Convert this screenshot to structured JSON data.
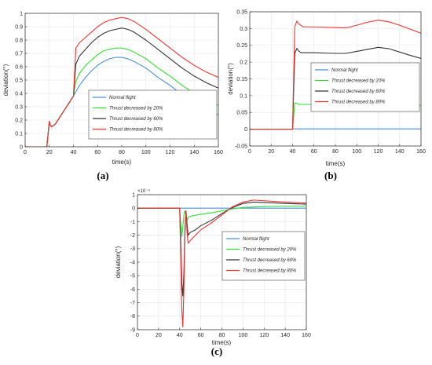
{
  "chart_data": [
    {
      "id": "a",
      "type": "line",
      "caption": "(a)",
      "xlabel": "time(s)",
      "ylabel": "deviation(°)",
      "xlim": [
        0,
        160
      ],
      "ylim": [
        0,
        1
      ],
      "xticks": [
        0,
        20,
        40,
        60,
        80,
        100,
        120,
        140,
        160
      ],
      "yticks": [
        0,
        0.1,
        0.2,
        0.3,
        0.4,
        0.5,
        0.6,
        0.7,
        0.8,
        0.9,
        1
      ],
      "ytick_labels": [
        "0",
        "0.1",
        "0.2",
        "0.3",
        "0.4",
        "0.5",
        "0.6",
        "0.7",
        "0.8",
        "0.9",
        "1"
      ],
      "grid": true,
      "legend_position": "bottom-right",
      "series": [
        {
          "name": "Normal flight",
          "color": "#4a90d9",
          "points": [
            [
              0,
              0
            ],
            [
              18,
              0
            ],
            [
              20,
              0.19
            ],
            [
              21,
              0.16
            ],
            [
              22,
              0.15
            ],
            [
              25,
              0.17
            ],
            [
              30,
              0.24
            ],
            [
              35,
              0.31
            ],
            [
              40,
              0.38
            ],
            [
              45,
              0.46
            ],
            [
              50,
              0.52
            ],
            [
              55,
              0.57
            ],
            [
              60,
              0.61
            ],
            [
              65,
              0.64
            ],
            [
              70,
              0.66
            ],
            [
              75,
              0.67
            ],
            [
              80,
              0.67
            ],
            [
              85,
              0.66
            ],
            [
              90,
              0.64
            ],
            [
              100,
              0.59
            ],
            [
              110,
              0.52
            ],
            [
              120,
              0.46
            ],
            [
              130,
              0.39
            ],
            [
              140,
              0.33
            ],
            [
              150,
              0.28
            ],
            [
              160,
              0.24
            ]
          ]
        },
        {
          "name": "Thrust decreased by 20%",
          "color": "#33dd33",
          "points": [
            [
              0,
              0
            ],
            [
              18,
              0
            ],
            [
              20,
              0.19
            ],
            [
              21,
              0.16
            ],
            [
              22,
              0.15
            ],
            [
              25,
              0.17
            ],
            [
              30,
              0.24
            ],
            [
              35,
              0.31
            ],
            [
              40,
              0.38
            ],
            [
              42,
              0.49
            ],
            [
              45,
              0.55
            ],
            [
              50,
              0.61
            ],
            [
              55,
              0.65
            ],
            [
              60,
              0.69
            ],
            [
              65,
              0.72
            ],
            [
              70,
              0.73
            ],
            [
              75,
              0.74
            ],
            [
              80,
              0.74
            ],
            [
              85,
              0.73
            ],
            [
              90,
              0.71
            ],
            [
              100,
              0.66
            ],
            [
              110,
              0.59
            ],
            [
              120,
              0.53
            ],
            [
              130,
              0.46
            ],
            [
              140,
              0.4
            ],
            [
              150,
              0.35
            ],
            [
              160,
              0.31
            ]
          ]
        },
        {
          "name": "Thrust decreased by 60%",
          "color": "#333333",
          "points": [
            [
              0,
              0
            ],
            [
              18,
              0
            ],
            [
              20,
              0.19
            ],
            [
              21,
              0.16
            ],
            [
              22,
              0.15
            ],
            [
              25,
              0.17
            ],
            [
              30,
              0.24
            ],
            [
              35,
              0.31
            ],
            [
              40,
              0.38
            ],
            [
              42,
              0.62
            ],
            [
              45,
              0.68
            ],
            [
              50,
              0.73
            ],
            [
              55,
              0.78
            ],
            [
              60,
              0.82
            ],
            [
              65,
              0.85
            ],
            [
              70,
              0.87
            ],
            [
              75,
              0.88
            ],
            [
              80,
              0.89
            ],
            [
              85,
              0.88
            ],
            [
              90,
              0.86
            ],
            [
              100,
              0.8
            ],
            [
              110,
              0.73
            ],
            [
              120,
              0.66
            ],
            [
              130,
              0.59
            ],
            [
              140,
              0.53
            ],
            [
              150,
              0.48
            ],
            [
              160,
              0.44
            ]
          ]
        },
        {
          "name": "Thrust decreased by 80%",
          "color": "#ee3333",
          "points": [
            [
              0,
              0
            ],
            [
              18,
              0
            ],
            [
              20,
              0.19
            ],
            [
              21,
              0.16
            ],
            [
              22,
              0.15
            ],
            [
              25,
              0.17
            ],
            [
              30,
              0.24
            ],
            [
              35,
              0.31
            ],
            [
              40,
              0.38
            ],
            [
              42,
              0.74
            ],
            [
              45,
              0.78
            ],
            [
              50,
              0.82
            ],
            [
              55,
              0.86
            ],
            [
              60,
              0.9
            ],
            [
              65,
              0.93
            ],
            [
              70,
              0.95
            ],
            [
              75,
              0.96
            ],
            [
              80,
              0.97
            ],
            [
              85,
              0.96
            ],
            [
              90,
              0.94
            ],
            [
              100,
              0.88
            ],
            [
              110,
              0.81
            ],
            [
              120,
              0.74
            ],
            [
              130,
              0.67
            ],
            [
              140,
              0.61
            ],
            [
              150,
              0.56
            ],
            [
              160,
              0.52
            ]
          ]
        }
      ]
    },
    {
      "id": "b",
      "type": "line",
      "caption": "(b)",
      "xlabel": "time(s)",
      "ylabel": "deviation(°)",
      "xlim": [
        0,
        160
      ],
      "ylim": [
        -0.05,
        0.35
      ],
      "xticks": [
        0,
        20,
        40,
        60,
        80,
        100,
        120,
        140,
        160
      ],
      "yticks": [
        -0.05,
        0,
        0.05,
        0.1,
        0.15,
        0.2,
        0.25,
        0.3,
        0.35
      ],
      "ytick_labels": [
        "-0.05",
        "0",
        "0.05",
        "0.1",
        "0.15",
        "0.2",
        "0.25",
        "0.3",
        "0.35"
      ],
      "grid": true,
      "legend_position": "center-right",
      "series": [
        {
          "name": "Normal flight",
          "color": "#4a90d9",
          "points": [
            [
              0,
              0
            ],
            [
              40,
              0
            ],
            [
              41,
              0.001
            ],
            [
              60,
              0.001
            ],
            [
              100,
              0.001
            ],
            [
              160,
              0.001
            ]
          ]
        },
        {
          "name": "Thrust decreased by 20%",
          "color": "#33dd33",
          "points": [
            [
              0,
              0
            ],
            [
              40,
              0
            ],
            [
              42,
              0.078
            ],
            [
              44,
              0.077
            ],
            [
              46,
              0.074
            ],
            [
              60,
              0.074
            ],
            [
              80,
              0.074
            ],
            [
              100,
              0.077
            ],
            [
              120,
              0.079
            ],
            [
              140,
              0.076
            ],
            [
              160,
              0.071
            ]
          ]
        },
        {
          "name": "Thrust decreased by 60%",
          "color": "#333333",
          "points": [
            [
              0,
              0
            ],
            [
              40,
              0
            ],
            [
              42,
              0.225
            ],
            [
              44,
              0.241
            ],
            [
              46,
              0.232
            ],
            [
              48,
              0.228
            ],
            [
              60,
              0.228
            ],
            [
              80,
              0.226
            ],
            [
              90,
              0.226
            ],
            [
              100,
              0.232
            ],
            [
              120,
              0.244
            ],
            [
              130,
              0.24
            ],
            [
              140,
              0.23
            ],
            [
              150,
              0.22
            ],
            [
              160,
              0.211
            ]
          ]
        },
        {
          "name": "Thrust decreased by 80%",
          "color": "#ee3333",
          "points": [
            [
              0,
              0
            ],
            [
              40,
              0
            ],
            [
              42,
              0.305
            ],
            [
              44,
              0.322
            ],
            [
              46,
              0.313
            ],
            [
              50,
              0.305
            ],
            [
              60,
              0.305
            ],
            [
              80,
              0.303
            ],
            [
              90,
              0.302
            ],
            [
              100,
              0.31
            ],
            [
              110,
              0.319
            ],
            [
              120,
              0.325
            ],
            [
              130,
              0.32
            ],
            [
              140,
              0.31
            ],
            [
              150,
              0.298
            ],
            [
              160,
              0.286
            ]
          ]
        }
      ]
    },
    {
      "id": "c",
      "type": "line",
      "caption": "(c)",
      "xlabel": "time(s)",
      "ylabel": "deviation(°)",
      "y_multiplier": "×10⁻⁴",
      "xlim": [
        0,
        160
      ],
      "ylim": [
        -9,
        1
      ],
      "xticks": [
        0,
        20,
        40,
        60,
        80,
        100,
        120,
        140,
        160
      ],
      "yticks": [
        -9,
        -8,
        -7,
        -6,
        -5,
        -4,
        -3,
        -2,
        -1,
        0,
        1
      ],
      "ytick_labels": [
        "-9",
        "-8",
        "-7",
        "-6",
        "-5",
        "-4",
        "-3",
        "-2",
        "-1",
        "0",
        "1"
      ],
      "grid": true,
      "legend_position": "top-right",
      "series": [
        {
          "name": "Normal flight",
          "color": "#4a90d9",
          "points": [
            [
              0,
              0
            ],
            [
              160,
              0
            ]
          ]
        },
        {
          "name": "Thrust decreased by 20%",
          "color": "#33dd33",
          "points": [
            [
              0,
              0
            ],
            [
              40,
              0
            ],
            [
              41,
              -1.2
            ],
            [
              42,
              -2.1
            ],
            [
              43,
              -1.4
            ],
            [
              44,
              -0.5
            ],
            [
              45,
              -0.2
            ],
            [
              46,
              -0.5
            ],
            [
              47,
              -0.9
            ],
            [
              48,
              -0.7
            ],
            [
              50,
              -0.6
            ],
            [
              60,
              -0.45
            ],
            [
              70,
              -0.35
            ],
            [
              80,
              -0.2
            ],
            [
              90,
              -0.05
            ],
            [
              100,
              0.05
            ],
            [
              120,
              0.12
            ],
            [
              140,
              0.15
            ],
            [
              160,
              0.15
            ]
          ]
        },
        {
          "name": "Thrust decreased by 60%",
          "color": "#333333",
          "points": [
            [
              0,
              0
            ],
            [
              40,
              0
            ],
            [
              41,
              -2.5
            ],
            [
              42,
              -5.5
            ],
            [
              43,
              -6.5
            ],
            [
              44,
              -4.8
            ],
            [
              45,
              -1.5
            ],
            [
              46,
              -0.2
            ],
            [
              47,
              -1.2
            ],
            [
              48,
              -2.0
            ],
            [
              50,
              -1.8
            ],
            [
              55,
              -1.6
            ],
            [
              60,
              -1.3
            ],
            [
              70,
              -0.9
            ],
            [
              80,
              -0.4
            ],
            [
              90,
              0.05
            ],
            [
              100,
              0.35
            ],
            [
              110,
              0.45
            ],
            [
              120,
              0.42
            ],
            [
              140,
              0.35
            ],
            [
              160,
              0.3
            ]
          ]
        },
        {
          "name": "Thrust decreased by 80%",
          "color": "#ee3333",
          "points": [
            [
              0,
              0
            ],
            [
              40,
              0
            ],
            [
              41,
              -3.5
            ],
            [
              42,
              -7.5
            ],
            [
              43,
              -8.8
            ],
            [
              44,
              -6.0
            ],
            [
              45,
              -2.0
            ],
            [
              46,
              -0.3
            ],
            [
              47,
              -1.8
            ],
            [
              48,
              -2.6
            ],
            [
              50,
              -2.4
            ],
            [
              55,
              -2.0
            ],
            [
              60,
              -1.6
            ],
            [
              70,
              -1.1
            ],
            [
              80,
              -0.5
            ],
            [
              90,
              0.1
            ],
            [
              100,
              0.45
            ],
            [
              110,
              0.6
            ],
            [
              120,
              0.55
            ],
            [
              140,
              0.45
            ],
            [
              160,
              0.38
            ]
          ]
        }
      ]
    }
  ]
}
